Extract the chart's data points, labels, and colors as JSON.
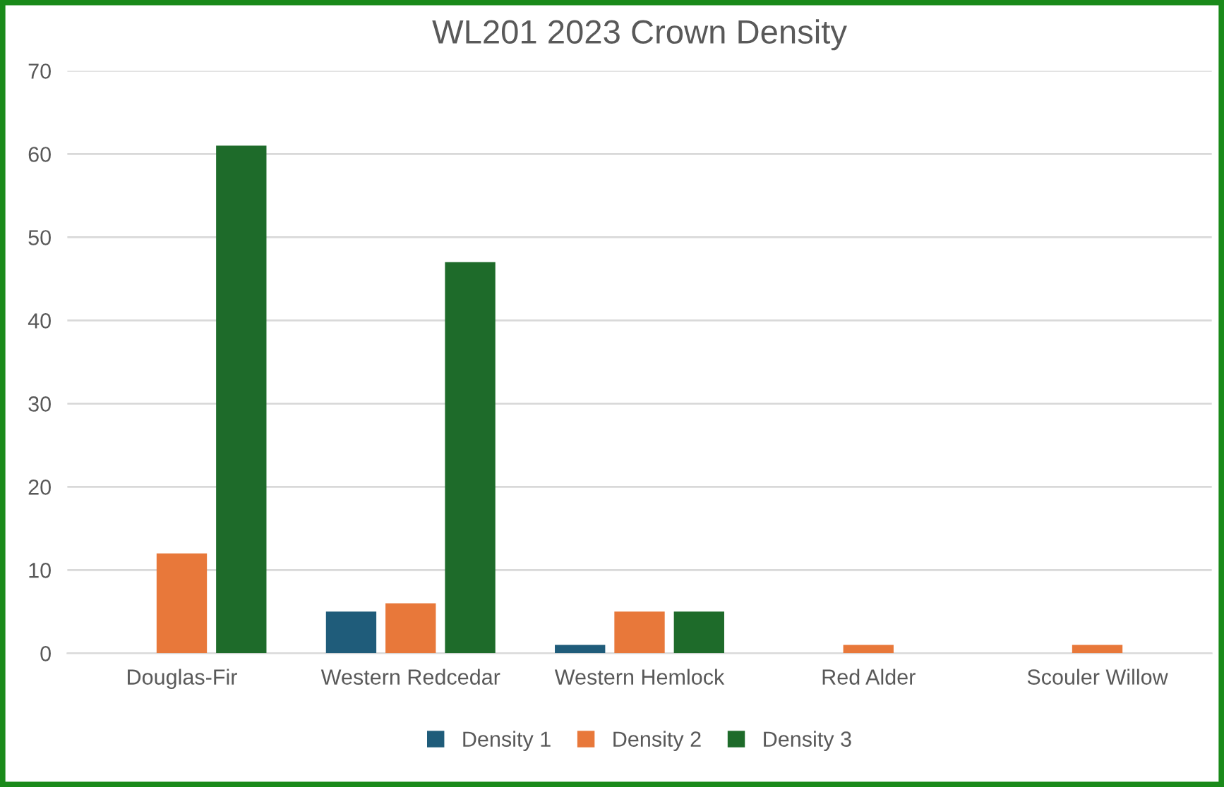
{
  "chart_data": {
    "type": "bar",
    "title": "WL201 2023 Crown Density",
    "categories": [
      "Douglas-Fir",
      "Western Redcedar",
      "Western Hemlock",
      "Red Alder",
      "Scouler Willow"
    ],
    "series": [
      {
        "name": "Density 1",
        "color": "#1f5c7a",
        "values": [
          0,
          5,
          1,
          0,
          0
        ]
      },
      {
        "name": "Density 2",
        "color": "#e8783a",
        "values": [
          12,
          6,
          5,
          1,
          1
        ]
      },
      {
        "name": "Density 3",
        "color": "#1e6b2a",
        "values": [
          61,
          47,
          5,
          0,
          0
        ]
      }
    ],
    "ylim": [
      0,
      70
    ],
    "yticks": [
      0,
      10,
      20,
      30,
      40,
      50,
      60,
      70
    ],
    "grid": "y",
    "legend": "bottom"
  }
}
